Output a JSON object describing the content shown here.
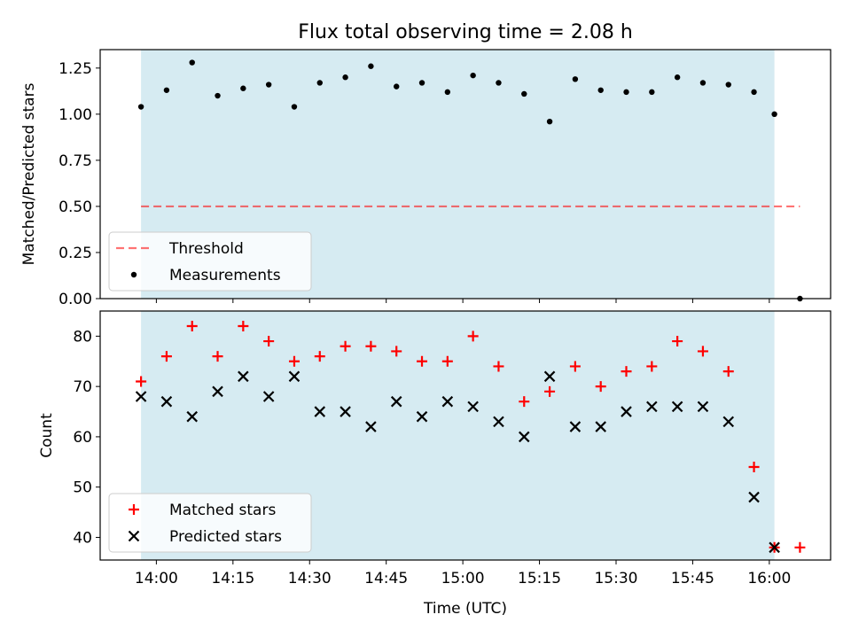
{
  "figure": {
    "title": "Flux total observing time = 2.08 h"
  },
  "colors": {
    "observing_band": "#add8e6",
    "threshold": "#ff0000",
    "measurements": "#000000",
    "matched": "#ff0000",
    "predicted": "#000000"
  },
  "chart_data": [
    {
      "type": "scatter",
      "ylabel": "Matched/Predicted stars",
      "ylim": [
        0.0,
        1.35
      ],
      "yticks": [
        "0.00",
        "0.25",
        "0.50",
        "0.75",
        "1.00",
        "1.25"
      ],
      "xlim": [
        "13:49",
        "16:12"
      ],
      "shaded_interval": [
        "13:57",
        "16:01"
      ],
      "legend_placement": "lower-left",
      "series": [
        {
          "name": "Threshold",
          "kind": "dashed-line",
          "x": [
            "13:57",
            "16:06"
          ],
          "y": [
            0.5,
            0.5
          ]
        },
        {
          "name": "Measurements",
          "kind": "dot",
          "x": [
            "13:57",
            "14:02",
            "14:07",
            "14:12",
            "14:17",
            "14:22",
            "14:27",
            "14:32",
            "14:37",
            "14:42",
            "14:47",
            "14:52",
            "14:57",
            "15:02",
            "15:07",
            "15:12",
            "15:17",
            "15:22",
            "15:27",
            "15:32",
            "15:37",
            "15:42",
            "15:47",
            "15:52",
            "15:57",
            "16:01",
            "16:06"
          ],
          "y": [
            1.04,
            1.13,
            1.28,
            1.1,
            1.14,
            1.16,
            1.04,
            1.17,
            1.2,
            1.26,
            1.15,
            1.17,
            1.12,
            1.21,
            1.17,
            1.11,
            0.96,
            1.19,
            1.13,
            1.12,
            1.12,
            1.2,
            1.17,
            1.16,
            1.12,
            1.0,
            0.0
          ]
        }
      ]
    },
    {
      "type": "scatter",
      "ylabel": "Count",
      "xlabel": "Time (UTC)",
      "ylim": [
        35.5,
        85
      ],
      "yticks": [
        "40",
        "50",
        "60",
        "70",
        "80"
      ],
      "xlim": [
        "13:49",
        "16:12"
      ],
      "xticks": [
        "14:00",
        "14:15",
        "14:30",
        "14:45",
        "15:00",
        "15:15",
        "15:30",
        "15:45",
        "16:00"
      ],
      "shaded_interval": [
        "13:57",
        "16:01"
      ],
      "legend_placement": "lower-left",
      "series": [
        {
          "name": "Matched stars",
          "kind": "plus",
          "x": [
            "13:57",
            "14:02",
            "14:07",
            "14:12",
            "14:17",
            "14:22",
            "14:27",
            "14:32",
            "14:37",
            "14:42",
            "14:47",
            "14:52",
            "14:57",
            "15:02",
            "15:07",
            "15:12",
            "15:17",
            "15:22",
            "15:27",
            "15:32",
            "15:37",
            "15:42",
            "15:47",
            "15:52",
            "15:57",
            "16:01",
            "16:06"
          ],
          "y": [
            71,
            76,
            82,
            76,
            82,
            79,
            75,
            76,
            78,
            78,
            77,
            75,
            75,
            80,
            74,
            67,
            69,
            74,
            70,
            73,
            74,
            79,
            77,
            73,
            54,
            38,
            38
          ]
        },
        {
          "name": "Predicted stars",
          "kind": "cross",
          "x": [
            "13:57",
            "14:02",
            "14:07",
            "14:12",
            "14:17",
            "14:22",
            "14:27",
            "14:32",
            "14:37",
            "14:42",
            "14:47",
            "14:52",
            "14:57",
            "15:02",
            "15:07",
            "15:12",
            "15:17",
            "15:22",
            "15:27",
            "15:32",
            "15:37",
            "15:42",
            "15:47",
            "15:52",
            "15:57",
            "16:01"
          ],
          "y": [
            68,
            67,
            64,
            69,
            72,
            68,
            72,
            65,
            65,
            62,
            67,
            64,
            67,
            66,
            63,
            60,
            72,
            62,
            62,
            65,
            66,
            66,
            66,
            63,
            48,
            38
          ]
        }
      ]
    }
  ]
}
